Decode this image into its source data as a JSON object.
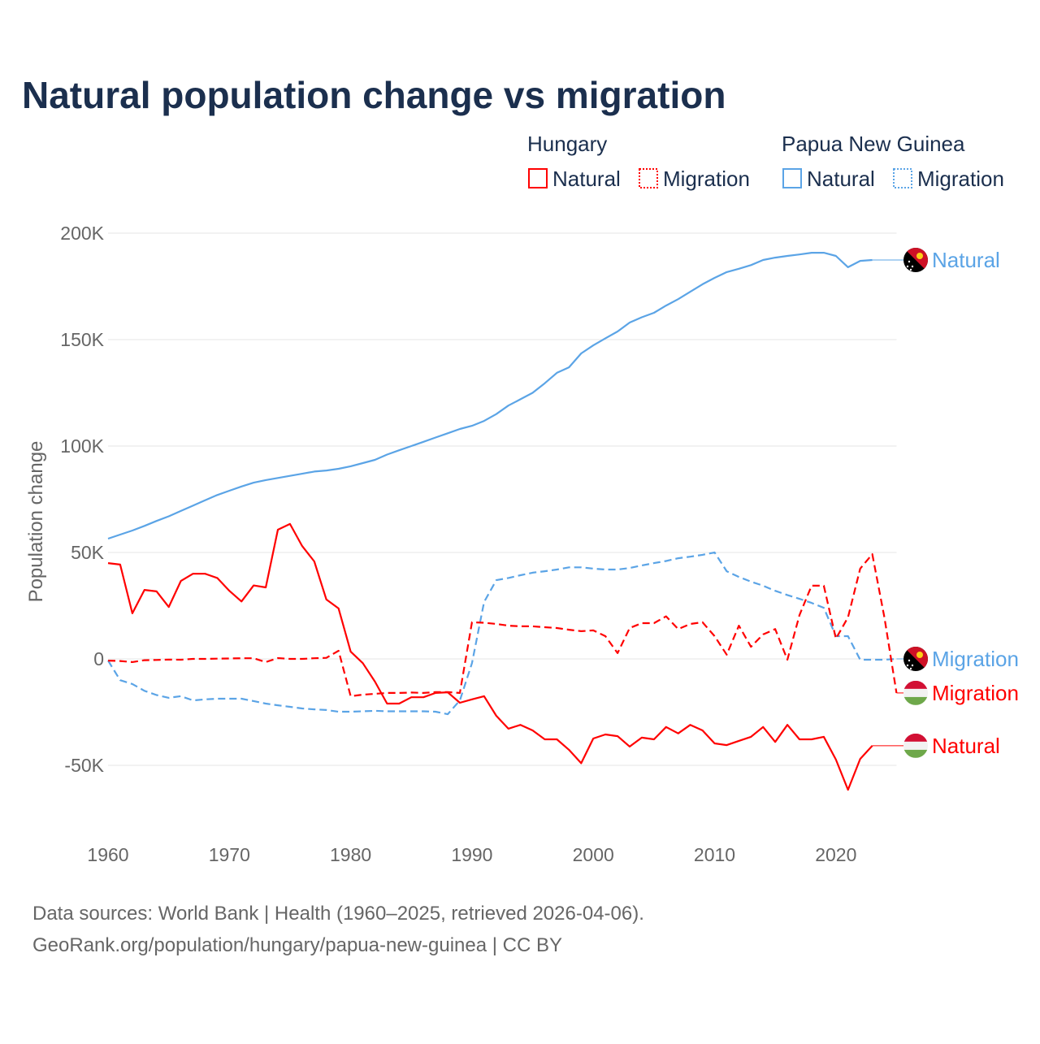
{
  "chart_data": {
    "type": "line",
    "title": "Natural population change vs migration",
    "ylabel": "Population change",
    "xlabel": "",
    "ylim": [
      -60000,
      200000
    ],
    "xlim": [
      1960,
      2025
    ],
    "yticks": [
      200000,
      150000,
      100000,
      50000,
      0,
      -50000
    ],
    "ytick_labels": [
      "200K",
      "150K",
      "100K",
      "50K",
      "0",
      "-50K"
    ],
    "xticks": [
      1960,
      1970,
      1980,
      1990,
      2000,
      2010,
      2020
    ],
    "xtick_labels": [
      "1960",
      "1970",
      "1980",
      "1990",
      "2000",
      "2010",
      "2020"
    ],
    "grid": true,
    "legend": {
      "placement": "top-right",
      "groups": [
        {
          "name": "Hungary",
          "items": [
            "Natural",
            "Migration"
          ]
        },
        {
          "name": "Papua New Guinea",
          "items": [
            "Natural",
            "Migration"
          ]
        }
      ]
    },
    "colors": {
      "hungary": "#ff0000",
      "png": "#5ba4e6"
    },
    "series": [
      {
        "name": "Natural",
        "country": "Papua New Guinea",
        "style": "solid",
        "color": "#5ba4e6",
        "start": 1960,
        "values": [
          56500,
          58400,
          60300,
          62500,
          64800,
          67000,
          69500,
          72000,
          74500,
          77000,
          79000,
          81000,
          82800,
          84000,
          85000,
          86000,
          87000,
          88000,
          88500,
          89300,
          90500,
          92000,
          93500,
          96000,
          98000,
          100000,
          102000,
          104000,
          106000,
          108000,
          109500,
          111800,
          115000,
          119000,
          122000,
          125000,
          129500,
          134400,
          137000,
          143500,
          147300,
          150600,
          153800,
          158000,
          160500,
          162600,
          166000,
          169000,
          172500,
          176000,
          179000,
          181700,
          183300,
          185000,
          187400,
          188500,
          189300,
          190000,
          190800,
          190800,
          189300,
          184000,
          187000,
          187400
        ]
      },
      {
        "name": "Migration",
        "country": "Papua New Guinea",
        "style": "dotted",
        "color": "#5ba4e6",
        "start": 1960,
        "values": [
          -800,
          -10000,
          -11800,
          -15000,
          -17000,
          -18300,
          -17500,
          -19500,
          -19000,
          -18700,
          -18700,
          -18700,
          -19800,
          -21000,
          -21800,
          -22500,
          -23300,
          -23700,
          -24000,
          -24800,
          -24800,
          -24600,
          -24400,
          -24600,
          -24600,
          -24600,
          -24600,
          -24800,
          -26000,
          -19500,
          -2000,
          26700,
          37000,
          38000,
          39300,
          40500,
          41200,
          42000,
          43000,
          43000,
          42400,
          42000,
          42000,
          42700,
          43900,
          45000,
          46000,
          47300,
          48000,
          48900,
          50000,
          41200,
          38500,
          36300,
          34400,
          32000,
          30000,
          28200,
          26300,
          24000,
          10700,
          10700,
          -400,
          -400,
          -400,
          0
        ]
      },
      {
        "name": "Migration",
        "country": "Hungary",
        "style": "dotted",
        "color": "#ff0000",
        "start": 1960,
        "values": [
          -800,
          -1000,
          -1500,
          -600,
          -500,
          -300,
          -400,
          0,
          0,
          100,
          200,
          300,
          300,
          -1500,
          400,
          0,
          0,
          300,
          500,
          3800,
          -17500,
          -16800,
          -16400,
          -16000,
          -16000,
          -15800,
          -16000,
          -15600,
          -15600,
          -16000,
          17200,
          17000,
          16400,
          15600,
          15300,
          15300,
          14900,
          14500,
          13700,
          13000,
          13400,
          10700,
          2700,
          14500,
          16800,
          16800,
          20000,
          14000,
          16400,
          17200,
          10700,
          2000,
          15600,
          5700,
          11500,
          14000,
          -400,
          20600,
          34400,
          34400,
          9500,
          19500,
          42400,
          49200,
          19500,
          -16000
        ]
      },
      {
        "name": "Natural",
        "country": "Hungary",
        "style": "solid",
        "color": "#ff0000",
        "start": 1960,
        "values": [
          45000,
          44300,
          21400,
          32400,
          31700,
          24400,
          36600,
          40000,
          40000,
          38000,
          32000,
          27000,
          34500,
          33600,
          60700,
          63400,
          53000,
          45800,
          27900,
          23700,
          3400,
          -2000,
          -10700,
          -21000,
          -21000,
          -18000,
          -18000,
          -16000,
          -15700,
          -20600,
          -19000,
          -17500,
          -26700,
          -32800,
          -31000,
          -33600,
          -37800,
          -37800,
          -42700,
          -49000,
          -37400,
          -35500,
          -36300,
          -41200,
          -37000,
          -37800,
          -32000,
          -35000,
          -31000,
          -33600,
          -39700,
          -40500,
          -38500,
          -36600,
          -32000,
          -39000,
          -31000,
          -37800,
          -37800,
          -36600,
          -47300,
          -61500,
          -47000,
          -40800
        ]
      }
    ],
    "end_labels": [
      {
        "text": "Natural",
        "country": "Papua New Guinea"
      },
      {
        "text": "Migration",
        "country": "Papua New Guinea"
      },
      {
        "text": "Migration",
        "country": "Hungary"
      },
      {
        "text": "Natural",
        "country": "Hungary"
      }
    ]
  },
  "footer": {
    "line1": "Data sources: World Bank | Health (1960–2025, retrieved 2026-04-06).",
    "line2": "GeoRank.org/population/hungary/papua-new-guinea | CC BY"
  }
}
